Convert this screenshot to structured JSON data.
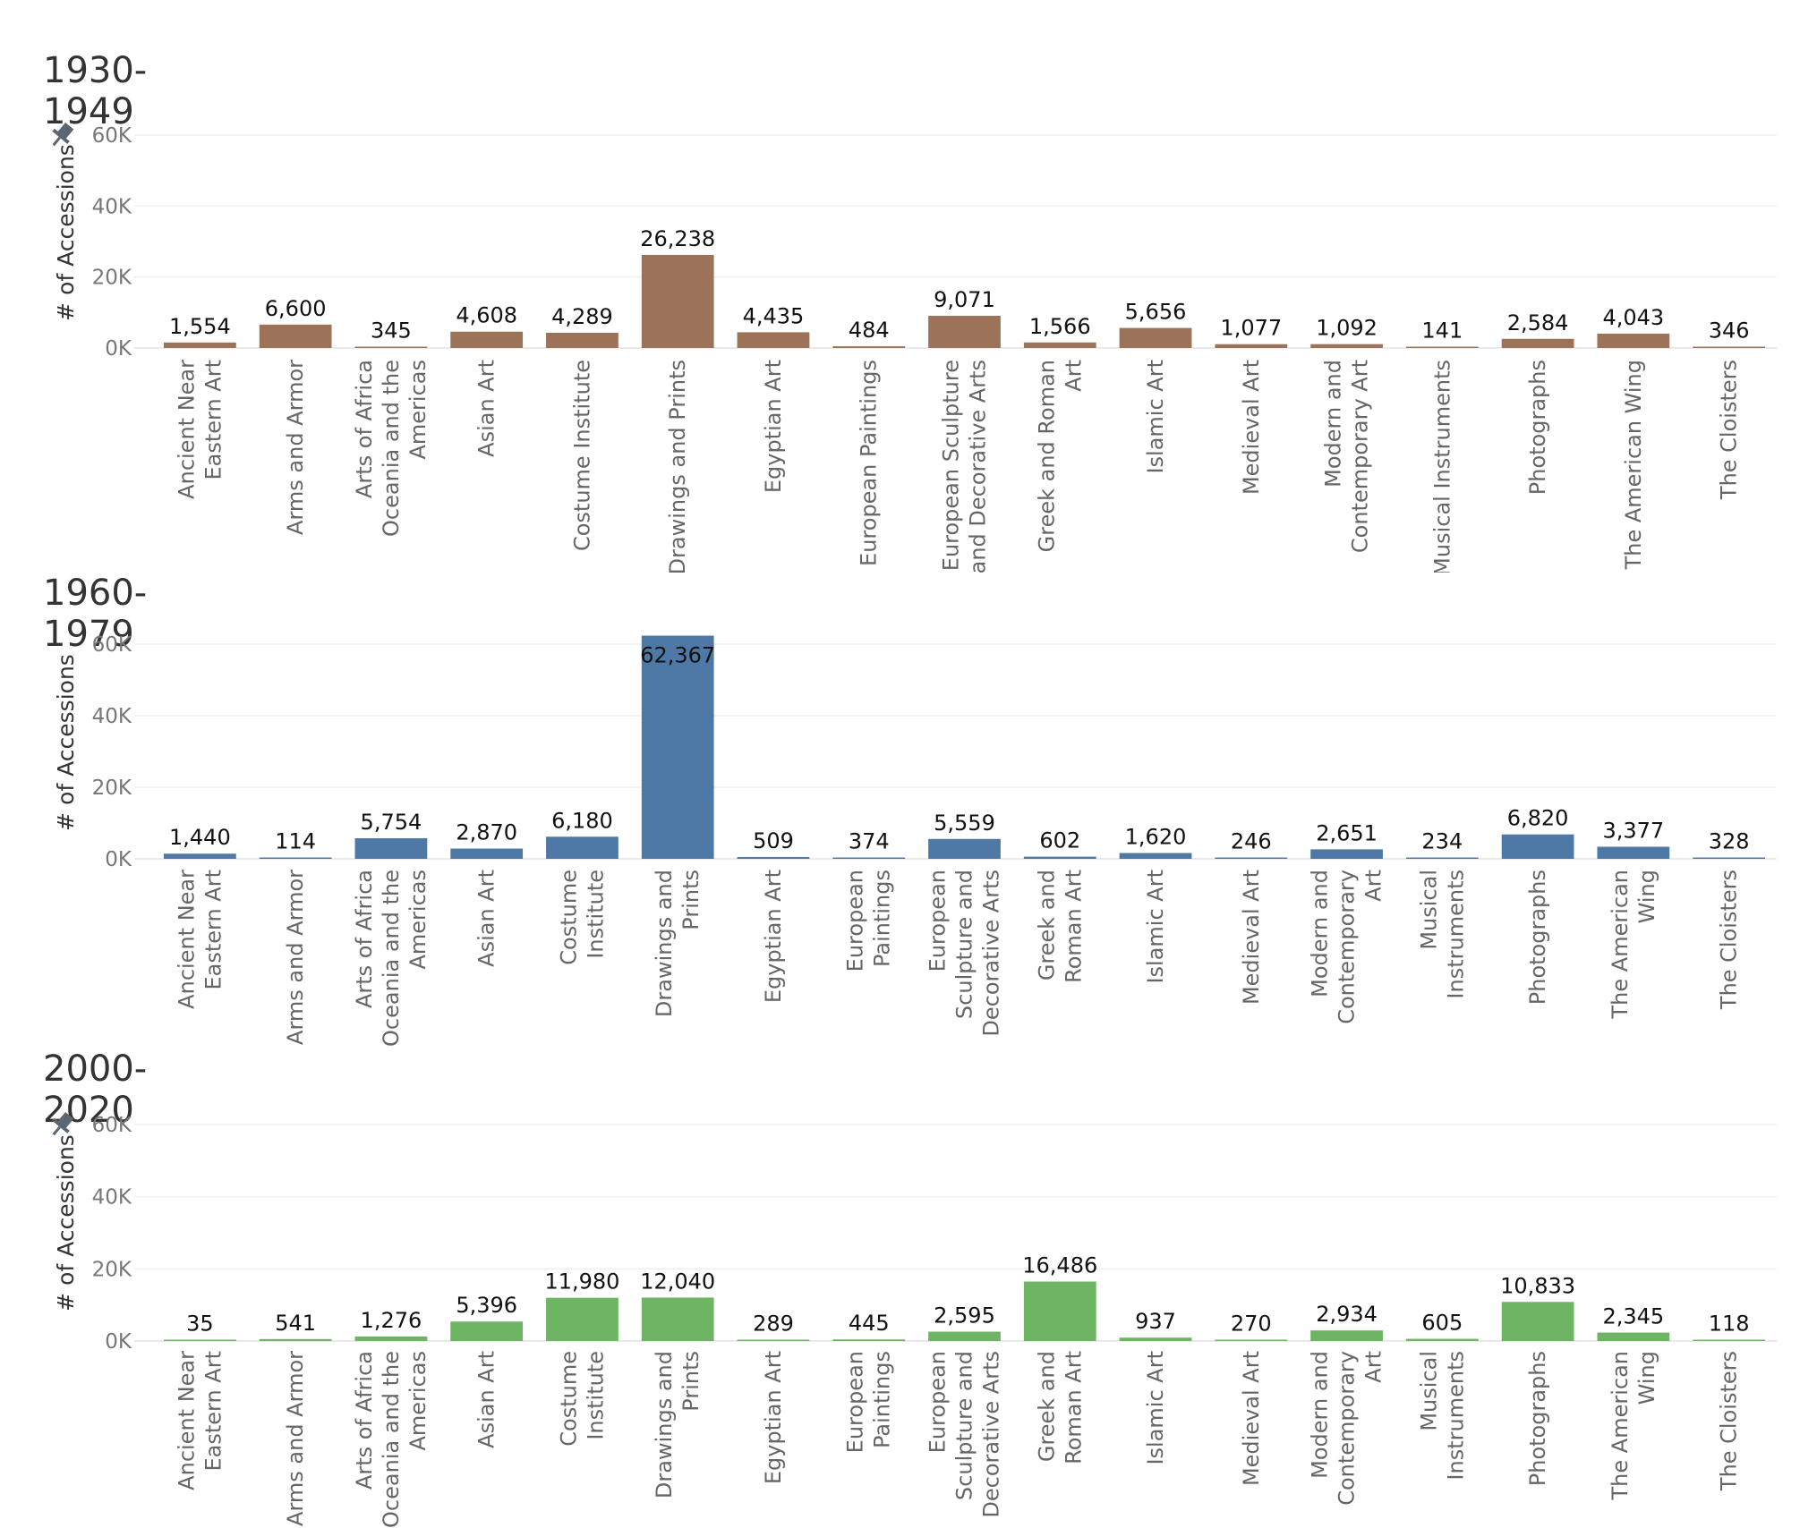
{
  "chart_data": [
    {
      "type": "bar",
      "title": "1930-1949",
      "ylabel": "# of Accessions",
      "ylim": [
        0,
        60000
      ],
      "yticks": [
        "0K",
        "20K",
        "40K",
        "60K"
      ],
      "bar_color": "#9c7359",
      "pin_icon": true,
      "categories": [
        [
          "Ancient Near",
          "Eastern Art"
        ],
        [
          "Arms and Armor"
        ],
        [
          "Arts of Africa",
          "Oceania and the",
          "Americas"
        ],
        [
          "Asian Art"
        ],
        [
          "Costume Institute"
        ],
        [
          "Drawings and Prints"
        ],
        [
          "Egyptian Art"
        ],
        [
          "European Paintings"
        ],
        [
          "European Sculpture",
          "and Decorative Arts"
        ],
        [
          "Greek and Roman",
          "Art"
        ],
        [
          "Islamic Art"
        ],
        [
          "Medieval Art"
        ],
        [
          "Modern and",
          "Contemporary Art"
        ],
        [
          "Musical Instruments"
        ],
        [
          "Photographs"
        ],
        [
          "The American Wing"
        ],
        [
          "The Cloisters"
        ]
      ],
      "values": [
        1554,
        6600,
        345,
        4608,
        4289,
        26238,
        4435,
        484,
        9071,
        1566,
        5656,
        1077,
        1092,
        141,
        2584,
        4043,
        346
      ],
      "labels": [
        "1,554",
        "6,600",
        "345",
        "4,608",
        "4,289",
        "26,238",
        "4,435",
        "484",
        "9,071",
        "1,566",
        "5,656",
        "1,077",
        "1,092",
        "141",
        "2,584",
        "4,043",
        "346"
      ]
    },
    {
      "type": "bar",
      "title": "1960-1979",
      "ylabel": "# of Accessions",
      "ylim": [
        0,
        60000
      ],
      "yticks": [
        "0K",
        "20K",
        "40K",
        "60K"
      ],
      "bar_color": "#4e79a7",
      "pin_icon": false,
      "categories": [
        [
          "Ancient Near",
          "Eastern Art"
        ],
        [
          "Arms and Armor"
        ],
        [
          "Arts of Africa",
          "Oceania and the",
          "Americas"
        ],
        [
          "Asian Art"
        ],
        [
          "Costume",
          "Institute"
        ],
        [
          "Drawings and",
          "Prints"
        ],
        [
          "Egyptian Art"
        ],
        [
          "European",
          "Paintings"
        ],
        [
          "European",
          "Sculpture and",
          "Decorative Arts"
        ],
        [
          "Greek and",
          "Roman Art"
        ],
        [
          "Islamic Art"
        ],
        [
          "Medieval Art"
        ],
        [
          "Modern and",
          "Contemporary",
          "Art"
        ],
        [
          "Musical",
          "Instruments"
        ],
        [
          "Photographs"
        ],
        [
          "The American",
          "Wing"
        ],
        [
          "The Cloisters"
        ]
      ],
      "values": [
        1440,
        114,
        5754,
        2870,
        6180,
        62367,
        509,
        374,
        5559,
        602,
        1620,
        246,
        2651,
        234,
        6820,
        3377,
        328
      ],
      "labels": [
        "1,440",
        "114",
        "5,754",
        "2,870",
        "6,180",
        "62,367",
        "509",
        "374",
        "5,559",
        "602",
        "1,620",
        "246",
        "2,651",
        "234",
        "6,820",
        "3,377",
        "328"
      ]
    },
    {
      "type": "bar",
      "title": "2000-2020",
      "ylabel": "# of Accessions",
      "ylim": [
        0,
        60000
      ],
      "yticks": [
        "0K",
        "20K",
        "40K",
        "60K"
      ],
      "bar_color": "#6db562",
      "pin_icon": true,
      "categories": [
        [
          "Ancient Near",
          "Eastern Art"
        ],
        [
          "Arms and Armor"
        ],
        [
          "Arts of Africa",
          "Oceania and the",
          "Americas"
        ],
        [
          "Asian Art"
        ],
        [
          "Costume",
          "Institute"
        ],
        [
          "Drawings and",
          "Prints"
        ],
        [
          "Egyptian Art"
        ],
        [
          "European",
          "Paintings"
        ],
        [
          "European",
          "Sculpture and",
          "Decorative Arts"
        ],
        [
          "Greek and",
          "Roman Art"
        ],
        [
          "Islamic Art"
        ],
        [
          "Medieval Art"
        ],
        [
          "Modern and",
          "Contemporary",
          "Art"
        ],
        [
          "Musical",
          "Instruments"
        ],
        [
          "Photographs"
        ],
        [
          "The American",
          "Wing"
        ],
        [
          "The Cloisters"
        ]
      ],
      "values": [
        35,
        541,
        1276,
        5396,
        11980,
        12040,
        289,
        445,
        2595,
        16486,
        937,
        270,
        2934,
        605,
        10833,
        2345,
        118
      ],
      "labels": [
        "35",
        "541",
        "1,276",
        "5,396",
        "11,980",
        "12,040",
        "289",
        "445",
        "2,595",
        "16,486",
        "937",
        "270",
        "2,934",
        "605",
        "10,833",
        "2,345",
        "118"
      ]
    }
  ]
}
